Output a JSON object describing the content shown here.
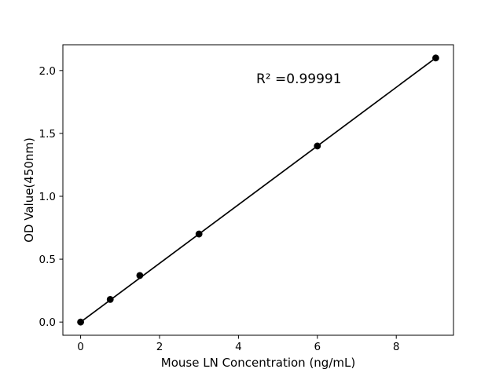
{
  "page": {
    "background_color": "#ffffff",
    "foreground_color": "#000000"
  },
  "chart_data": {
    "type": "scatter",
    "title": "",
    "xlabel": "Mouse LN Concentration (ng/mL)",
    "ylabel": "OD Value(450nm)",
    "x": [
      0,
      0.75,
      1.5,
      3,
      6,
      9
    ],
    "y": [
      0.0,
      0.18,
      0.37,
      0.7,
      1.4,
      2.1
    ],
    "fit_line": {
      "x": [
        0,
        9
      ],
      "y": [
        0.0,
        2.1
      ]
    },
    "annotation": {
      "text": "R² =0.99991",
      "x": 4.45,
      "y": 1.9
    },
    "xlim": [
      -0.45,
      9.45
    ],
    "ylim": [
      -0.105,
      2.205
    ],
    "xticks": [
      0,
      2,
      4,
      6,
      8
    ],
    "xtick_labels": [
      "0",
      "2",
      "4",
      "6",
      "8"
    ],
    "yticks": [
      0.0,
      0.5,
      1.0,
      1.5,
      2.0
    ],
    "ytick_labels": [
      "0.0",
      "0.5",
      "1.0",
      "1.5",
      "2.0"
    ],
    "grid": false,
    "legend": null,
    "marker_color": "#000000",
    "line_color": "#000000",
    "frame_color": "#000000"
  }
}
